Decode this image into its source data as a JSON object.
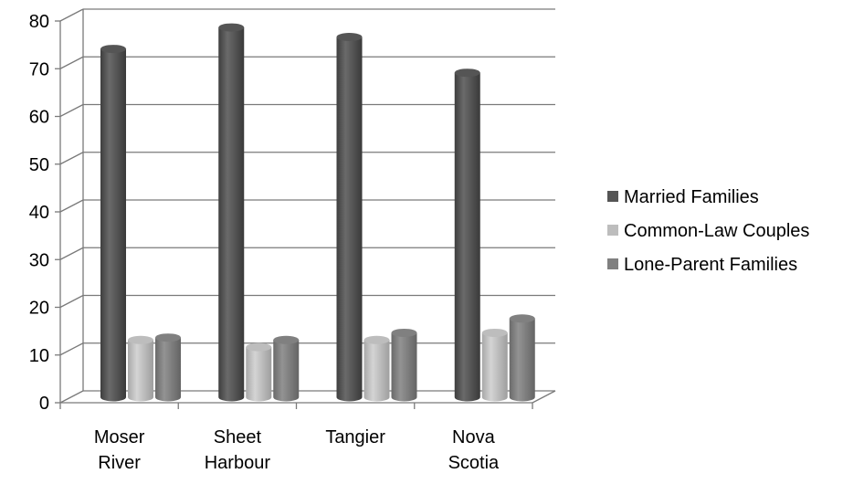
{
  "chart_data": {
    "type": "bar",
    "variant": "3d-cylinder",
    "title": "",
    "xlabel": "",
    "ylabel": "",
    "categories": [
      [
        "Moser",
        "River"
      ],
      [
        "Sheet",
        "Harbour"
      ],
      [
        "Tangier"
      ],
      [
        "Nova",
        "Scotia"
      ]
    ],
    "series": [
      {
        "name": "Married Families",
        "values": [
          73,
          77.5,
          75.5,
          68
        ],
        "color": "#555555"
      },
      {
        "name": "Common-Law Couples",
        "values": [
          12,
          10.5,
          12,
          13.5
        ],
        "color": "#bdbdbd"
      },
      {
        "name": "Lone-Parent Families",
        "values": [
          12.5,
          12,
          13.5,
          16.5
        ],
        "color": "#808080"
      }
    ],
    "ylim": [
      0,
      80
    ],
    "yticks": [
      0,
      10,
      20,
      30,
      40,
      50,
      60,
      70,
      80
    ],
    "grid": true,
    "legend_position": "right"
  }
}
